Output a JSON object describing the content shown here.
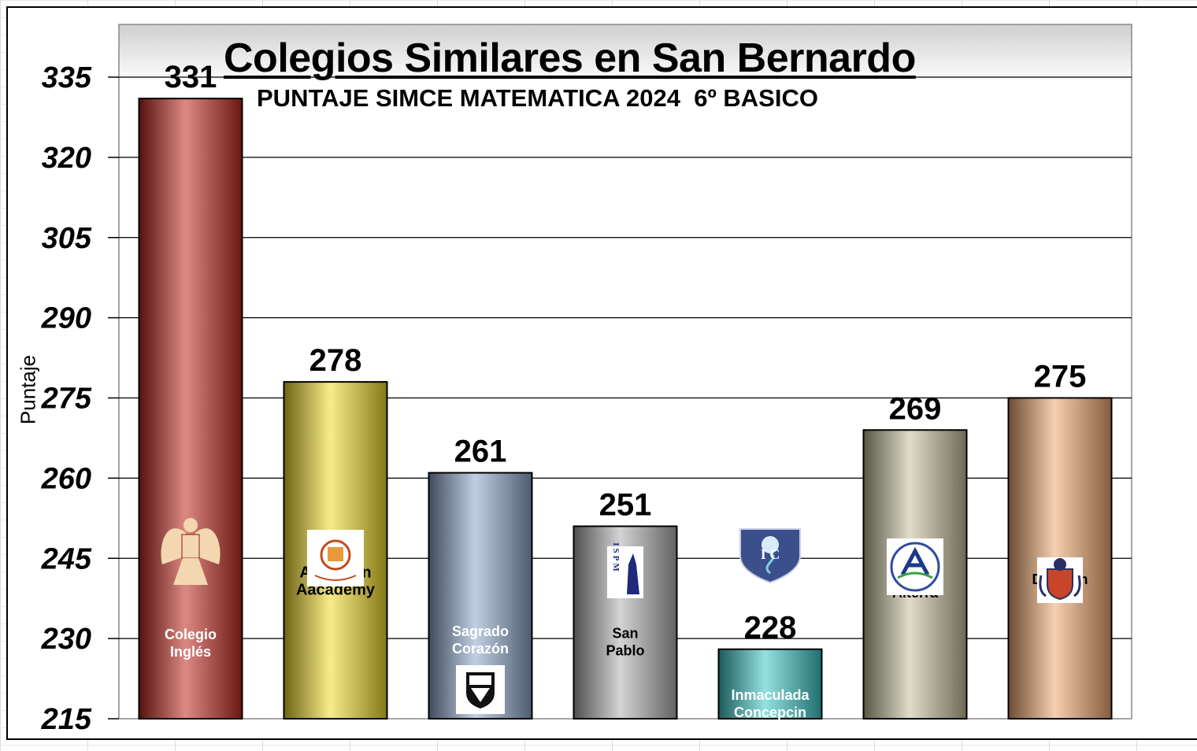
{
  "chart_data": {
    "type": "bar",
    "title": "Colegios Similares en San Bernardo",
    "subtitle": "PUNTAJE SIMCE MATEMATICA 2024  6º BASICO",
    "ylabel": "Puntaje",
    "xlabel": "",
    "ylim": [
      215,
      335
    ],
    "yticks": [
      215,
      230,
      245,
      260,
      275,
      290,
      305,
      320,
      335
    ],
    "grid": true,
    "categories": [
      [
        "Colegio",
        "Inglés"
      ],
      [
        "American",
        "Aacademy"
      ],
      [
        "Sagrado",
        "Corazón"
      ],
      [
        "San",
        "Pablo"
      ],
      [
        "Inmaculada",
        "Concepcin"
      ],
      [
        "Alterra"
      ],
      [
        "Denham"
      ]
    ],
    "values": [
      331,
      278,
      261,
      251,
      228,
      269,
      275
    ],
    "colors": [
      "#c0281e",
      "#f2dc2a",
      "#8ea8cc",
      "#b0b0b0",
      "#3cc8c8",
      "#c4bf9c",
      "#f0a870"
    ],
    "label_colors": [
      "#ffffff",
      "#000000",
      "#ffffff",
      "#000000",
      "#ffffff",
      "#000000",
      "#000000"
    ],
    "logo_icons": [
      "eagle-crest-icon",
      "american-academy-crest-icon",
      "sagrado-corazon-shield-icon",
      "ispm-crest-icon",
      "isc-shield-icon",
      "alterra-seal-icon",
      "denham-crest-icon"
    ],
    "logo_texts": [
      "",
      "",
      "",
      "ISPM",
      "I  C",
      "",
      ""
    ]
  }
}
